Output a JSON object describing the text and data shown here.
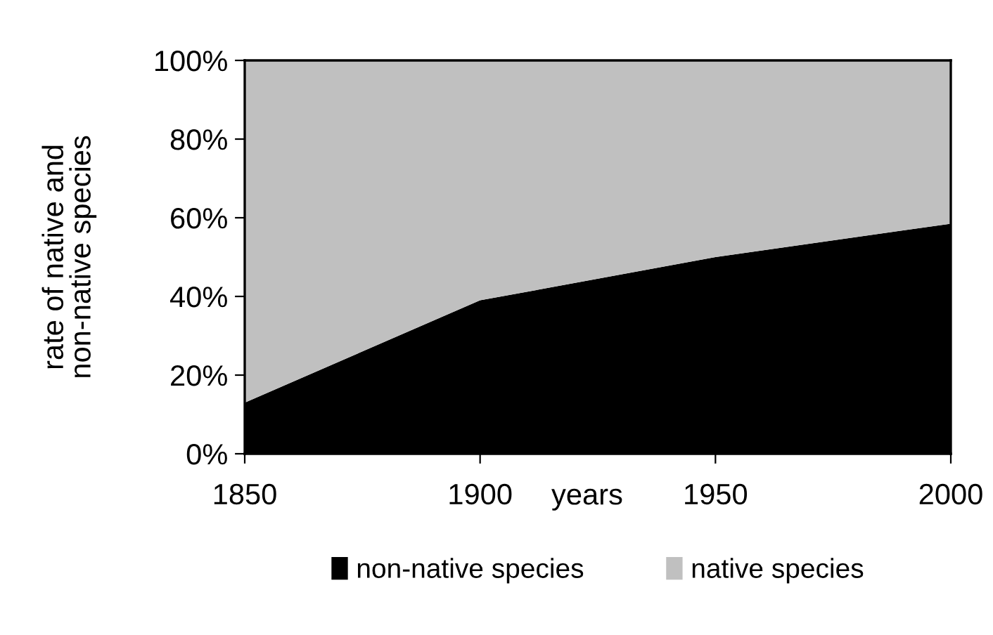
{
  "chart_data": {
    "type": "area",
    "stacked": true,
    "x": [
      1850,
      1900,
      1950,
      2000
    ],
    "series": [
      {
        "name": "non-native species",
        "color": "#000000",
        "values": [
          13,
          39,
          50,
          58.5
        ]
      },
      {
        "name": "native species",
        "color": "#c0c0c0",
        "values": [
          87,
          61,
          50,
          41.5
        ]
      }
    ],
    "xlabel": "years",
    "ylabel": "rate of native and\nnon-native species",
    "xlim": [
      1850,
      2000
    ],
    "xticks": [
      1850,
      1900,
      1950,
      2000
    ],
    "ylim": [
      0,
      100
    ],
    "yticks": [
      {
        "value": 0,
        "label": "0%"
      },
      {
        "value": 20,
        "label": "20%"
      },
      {
        "value": 40,
        "label": "40%"
      },
      {
        "value": 60,
        "label": "60%"
      },
      {
        "value": 80,
        "label": "80%"
      },
      {
        "value": 100,
        "label": "100%"
      }
    ],
    "grid": false,
    "legend": "bottom"
  }
}
